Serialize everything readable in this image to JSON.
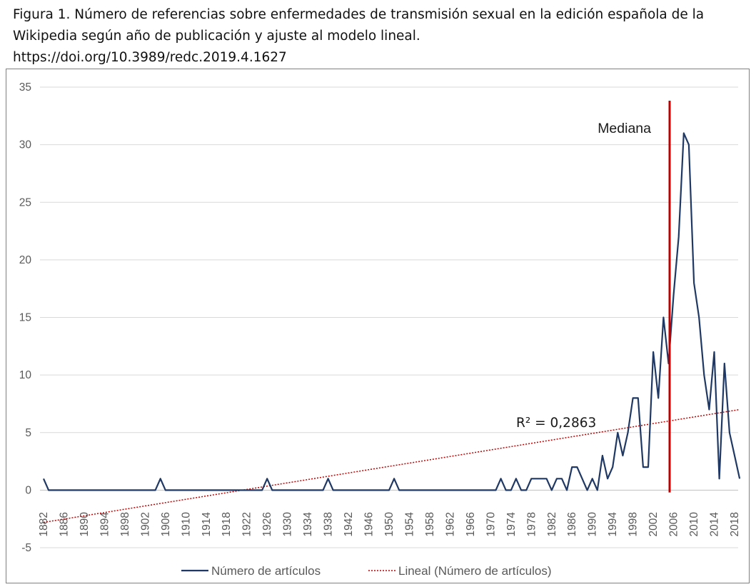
{
  "caption": {
    "line1": "Figura 1. Número de referencias sobre enfermedades de transmisión sexual en la edición española de la",
    "line2": "Wikipedia según año de publicación y ajuste al modelo lineal.",
    "line3": "https://doi.org/10.3989/redc.2019.4.1627"
  },
  "chart_data": {
    "type": "line",
    "title": "",
    "xlabel": "",
    "ylabel": "",
    "ylim": [
      -5,
      35
    ],
    "yticks": [
      -5,
      0,
      5,
      10,
      15,
      20,
      25,
      30,
      35
    ],
    "xlim": [
      1882,
      2018
    ],
    "xticks": [
      1882,
      1886,
      1890,
      1894,
      1898,
      1902,
      1906,
      1910,
      1914,
      1918,
      1922,
      1926,
      1930,
      1934,
      1938,
      1942,
      1946,
      1950,
      1954,
      1958,
      1962,
      1966,
      1970,
      1974,
      1978,
      1982,
      1986,
      1990,
      1994,
      1998,
      2002,
      2006,
      2010,
      2014,
      2018
    ],
    "grid": "horizontal",
    "legend_position": "bottom",
    "series": [
      {
        "name": "Número de artículos",
        "color": "#1f3864",
        "points": [
          [
            1882,
            1
          ],
          [
            1883,
            0
          ],
          [
            1904,
            0
          ],
          [
            1905,
            1
          ],
          [
            1906,
            0
          ],
          [
            1925,
            0
          ],
          [
            1926,
            1
          ],
          [
            1927,
            0
          ],
          [
            1937,
            0
          ],
          [
            1938,
            1
          ],
          [
            1939,
            0
          ],
          [
            1950,
            0
          ],
          [
            1951,
            1
          ],
          [
            1952,
            0
          ],
          [
            1971,
            0
          ],
          [
            1972,
            1
          ],
          [
            1973,
            0
          ],
          [
            1974,
            0
          ],
          [
            1975,
            1
          ],
          [
            1976,
            0
          ],
          [
            1977,
            0
          ],
          [
            1978,
            1
          ],
          [
            1981,
            1
          ],
          [
            1982,
            0
          ],
          [
            1983,
            1
          ],
          [
            1984,
            1
          ],
          [
            1985,
            0
          ],
          [
            1986,
            2
          ],
          [
            1987,
            2
          ],
          [
            1989,
            0
          ],
          [
            1990,
            1
          ],
          [
            1991,
            0
          ],
          [
            1992,
            3
          ],
          [
            1993,
            1
          ],
          [
            1994,
            2
          ],
          [
            1995,
            5
          ],
          [
            1996,
            3
          ],
          [
            1997,
            5
          ],
          [
            1998,
            8
          ],
          [
            1999,
            8
          ],
          [
            2000,
            2
          ],
          [
            2001,
            2
          ],
          [
            2002,
            12
          ],
          [
            2003,
            8
          ],
          [
            2004,
            15
          ],
          [
            2005,
            11
          ],
          [
            2006,
            17
          ],
          [
            2007,
            22
          ],
          [
            2008,
            31
          ],
          [
            2009,
            30
          ],
          [
            2010,
            18
          ],
          [
            2011,
            15
          ],
          [
            2012,
            10
          ],
          [
            2013,
            7
          ],
          [
            2014,
            12
          ],
          [
            2015,
            1
          ],
          [
            2016,
            11
          ],
          [
            2017,
            5
          ],
          [
            2018,
            3
          ],
          [
            2019,
            1
          ]
        ]
      },
      {
        "name": "Lineal (Número de artículos)",
        "type": "trendline",
        "color": "#c00000",
        "points": [
          [
            1882,
            -2.8
          ],
          [
            2019,
            7
          ]
        ]
      }
    ],
    "annotations": [
      {
        "id": "mediana",
        "text": "Mediana",
        "x": 2007,
        "color": "#c00000"
      },
      {
        "id": "r2",
        "text": "R² = 0,2863"
      }
    ]
  }
}
